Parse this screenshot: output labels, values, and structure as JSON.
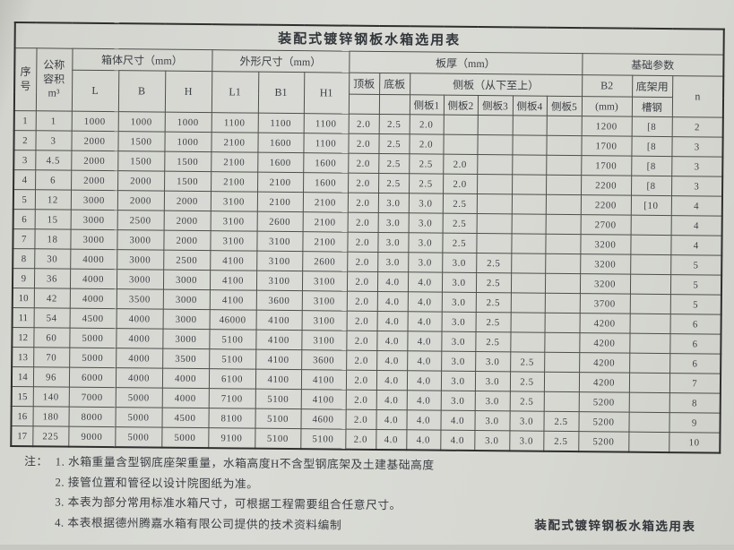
{
  "title": "装配式镀锌钢板水箱选用表",
  "table": {
    "header": {
      "seq": "序\n号",
      "volume": "公称\n容积\nm³",
      "box_size_group": "箱体尺寸（mm）",
      "outer_size_group": "外形尺寸（mm）",
      "thickness_group": "板厚（mm）",
      "foundation_group": "基础参数",
      "L": "L",
      "B": "B",
      "H": "H",
      "L1": "L1",
      "B1": "B1",
      "H1": "H1",
      "top_plate": "顶板",
      "bottom_plate": "底板",
      "side_plates_group": "侧板（从下至上）",
      "side1": "侧板1",
      "side2": "侧板2",
      "side3": "侧板3",
      "side4": "侧板4",
      "side5": "侧板5",
      "B2_label": "B2",
      "B2_unit": "(mm)",
      "base_frame_top": "底架用",
      "base_frame_bottom": "槽钢",
      "n": "n"
    },
    "col_keys": [
      "seq",
      "volume",
      "L",
      "B",
      "H",
      "L1",
      "B1",
      "H1",
      "top_plate",
      "bottom_plate",
      "side1",
      "side2",
      "side3",
      "side4",
      "side5",
      "B2",
      "channel_steel",
      "n"
    ],
    "rows": [
      [
        "1",
        "1",
        "1000",
        "1000",
        "1000",
        "1100",
        "1100",
        "1100",
        "2.0",
        "2.5",
        "2.0",
        "",
        "",
        "",
        "",
        "1200",
        "[8",
        "2"
      ],
      [
        "2",
        "3",
        "2000",
        "1500",
        "1000",
        "2100",
        "1600",
        "1100",
        "2.0",
        "2.5",
        "2.0",
        "",
        "",
        "",
        "",
        "1700",
        "[8",
        "3"
      ],
      [
        "3",
        "4.5",
        "2000",
        "1500",
        "1500",
        "2100",
        "1600",
        "1600",
        "2.0",
        "2.5",
        "2.5",
        "2.0",
        "",
        "",
        "",
        "1700",
        "[8",
        "3"
      ],
      [
        "4",
        "6",
        "2000",
        "2000",
        "1500",
        "2100",
        "2100",
        "1600",
        "2.0",
        "2.5",
        "2.5",
        "2.0",
        "",
        "",
        "",
        "2200",
        "[8",
        "3"
      ],
      [
        "5",
        "12",
        "3000",
        "2000",
        "2000",
        "3100",
        "2100",
        "2100",
        "2.0",
        "3.0",
        "3.0",
        "2.5",
        "",
        "",
        "",
        "2200",
        "[10",
        "4"
      ],
      [
        "6",
        "15",
        "3000",
        "2500",
        "2000",
        "3100",
        "2600",
        "2100",
        "2.0",
        "3.0",
        "3.0",
        "2.5",
        "",
        "",
        "",
        "2700",
        "",
        "4"
      ],
      [
        "7",
        "18",
        "3000",
        "3000",
        "2000",
        "3100",
        "3100",
        "2100",
        "2.0",
        "3.0",
        "3.0",
        "2.5",
        "",
        "",
        "",
        "3200",
        "",
        "4"
      ],
      [
        "8",
        "30",
        "4000",
        "3000",
        "2500",
        "4100",
        "3100",
        "2600",
        "2.0",
        "3.0",
        "3.0",
        "3.0",
        "2.5",
        "",
        "",
        "3200",
        "",
        "5"
      ],
      [
        "9",
        "36",
        "4000",
        "3000",
        "3000",
        "4100",
        "3100",
        "3100",
        "2.0",
        "4.0",
        "4.0",
        "3.0",
        "2.5",
        "",
        "",
        "3200",
        "",
        "5"
      ],
      [
        "10",
        "42",
        "4000",
        "3500",
        "3000",
        "4100",
        "3600",
        "3100",
        "2.0",
        "4.0",
        "4.0",
        "3.0",
        "2.5",
        "",
        "",
        "3700",
        "",
        "5"
      ],
      [
        "11",
        "54",
        "4500",
        "4000",
        "3000",
        "46000",
        "4100",
        "3100",
        "2.0",
        "4.0",
        "4.0",
        "3.0",
        "2.5",
        "",
        "",
        "4200",
        "",
        "6"
      ],
      [
        "12",
        "60",
        "5000",
        "4000",
        "3000",
        "5100",
        "4100",
        "3100",
        "2.0",
        "4.0",
        "4.0",
        "3.0",
        "2.5",
        "",
        "",
        "4200",
        "",
        "6"
      ],
      [
        "13",
        "70",
        "5000",
        "4000",
        "3500",
        "5100",
        "4100",
        "3600",
        "2.0",
        "4.0",
        "4.0",
        "3.0",
        "3.0",
        "2.5",
        "",
        "4200",
        "",
        "6"
      ],
      [
        "14",
        "96",
        "6000",
        "4000",
        "4000",
        "6100",
        "4100",
        "4100",
        "2.0",
        "4.0",
        "4.0",
        "3.0",
        "3.0",
        "2.5",
        "",
        "4200",
        "",
        "7"
      ],
      [
        "15",
        "140",
        "7000",
        "5000",
        "4000",
        "7100",
        "5100",
        "4100",
        "2.0",
        "4.0",
        "4.0",
        "3.0",
        "3.0",
        "2.5",
        "",
        "5200",
        "",
        "8"
      ],
      [
        "16",
        "180",
        "8000",
        "5000",
        "4500",
        "8100",
        "5100",
        "4600",
        "2.0",
        "4.0",
        "4.0",
        "4.0",
        "3.0",
        "3.0",
        "2.5",
        "5200",
        "",
        "9"
      ],
      [
        "17",
        "225",
        "9000",
        "5000",
        "5000",
        "9100",
        "5100",
        "5100",
        "2.0",
        "4.0",
        "4.0",
        "4.0",
        "3.0",
        "3.0",
        "2.5",
        "5200",
        "",
        "10"
      ]
    ]
  },
  "notes": {
    "label": "注：",
    "items": [
      "1. 水箱重量含型钢底座架重量，水箱高度H不含型钢底架及土建基础高度",
      "2. 接管位置和管径以设计院图纸为准。",
      "3. 本表为部分常用标准水箱尺寸，可根据工程需要组合任意尺寸。",
      "4. 本表根据德州腾嘉水箱有限公司提供的技术资料编制"
    ]
  },
  "caption": "装配式镀锌钢板水箱选用表",
  "colors": {
    "paper": "#dadbd6",
    "border": "#4d4e4a",
    "outer_border": "#2e2f2d",
    "text": "#3d4046"
  }
}
